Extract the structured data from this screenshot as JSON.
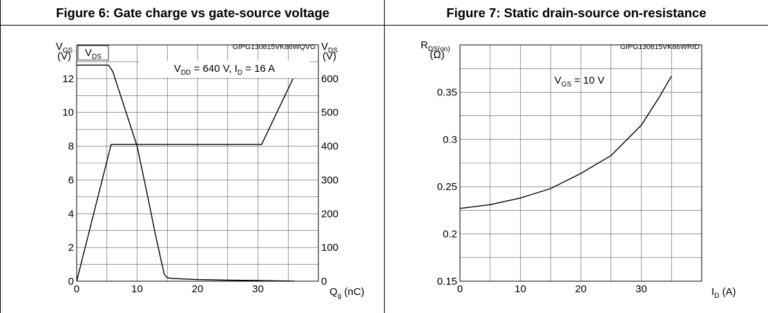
{
  "chart_data": [
    {
      "type": "line",
      "title": "Figure 6: Gate charge vs gate-source voltage",
      "code": "GIPG130815VK86WQVG",
      "annotation": {
        "main1": "V",
        "sub1": "DD",
        "main2": " = 640 V, I",
        "sub2": "D",
        "tail": " = 16 A"
      },
      "xlabel": {
        "main": "Q",
        "sub": "g",
        "tail": " (nC)"
      },
      "ylabel_left": {
        "main": "V",
        "sub": "GS",
        "unit": "(V)"
      },
      "ylabel_right": {
        "main": "V",
        "sub": "DS",
        "unit": "(V)"
      },
      "curve_label_vds": {
        "main": "V",
        "sub": "DS"
      },
      "xlim": [
        0,
        40
      ],
      "ylim_left": [
        0,
        14
      ],
      "ylim_right": [
        0,
        700
      ],
      "x_ticks": [
        0,
        10,
        20,
        30
      ],
      "y_ticks_left": [
        0,
        2,
        4,
        6,
        8,
        10,
        12
      ],
      "y_ticks_right": [
        0,
        100,
        200,
        300,
        400,
        500,
        600
      ],
      "grid": true,
      "series": [
        {
          "name": "VGS",
          "axis": "left",
          "x": [
            0,
            5.7,
            30.6,
            35.8
          ],
          "y": [
            0,
            8.1,
            8.1,
            12
          ]
        },
        {
          "name": "VDS",
          "axis": "right",
          "x": [
            0,
            5.0,
            5.2,
            5.5,
            6.0,
            10.0,
            12.0,
            13.0,
            14.0,
            14.5,
            15.0,
            16.0,
            20.0,
            25.0,
            30.0,
            33.0,
            36.0
          ],
          "y": [
            640,
            640,
            640,
            635,
            620,
            400,
            230,
            140,
            60,
            20,
            10,
            8,
            5,
            3,
            2,
            1,
            0.5
          ]
        }
      ]
    },
    {
      "type": "line",
      "title": "Figure 7: Static drain-source on-resistance",
      "code": "GIPG130815VK86WRID",
      "annotation": {
        "main": "V",
        "sub": "GS",
        "tail": " = 10 V"
      },
      "xlabel": {
        "main": "I",
        "sub": "D",
        "tail": " (A)"
      },
      "ylabel": {
        "main": "R",
        "sub": "DS(on)",
        "unit": "(Ω)"
      },
      "xlim": [
        0,
        40
      ],
      "ylim": [
        0.15,
        0.4
      ],
      "x_ticks": [
        0,
        10,
        20,
        30
      ],
      "y_ticks": [
        0.15,
        0.2,
        0.25,
        0.3,
        0.35
      ],
      "y_tick_labels": [
        "0.15",
        "0.2",
        "0.25",
        "0.3",
        "0.35"
      ],
      "grid": true,
      "series": [
        {
          "name": "RDS(on)",
          "x": [
            0,
            5,
            10,
            15,
            20,
            25,
            30,
            33,
            35
          ],
          "y": [
            0.227,
            0.231,
            0.238,
            0.248,
            0.264,
            0.283,
            0.315,
            0.345,
            0.367
          ]
        }
      ]
    }
  ]
}
